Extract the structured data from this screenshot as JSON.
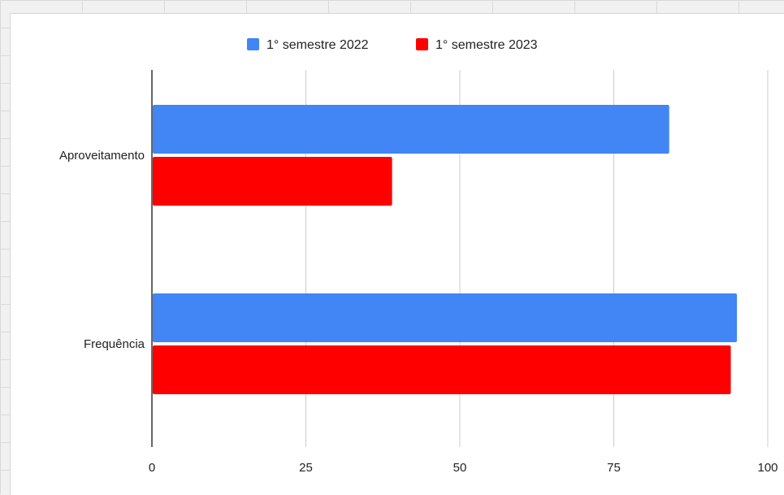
{
  "chart_data": {
    "type": "bar",
    "orientation": "horizontal",
    "categories": [
      "Aproveitamento",
      "Frequência"
    ],
    "series": [
      {
        "name": "1° semestre 2022",
        "color": "#4285f4",
        "values": [
          84,
          95
        ]
      },
      {
        "name": "1° semestre 2023",
        "color": "#ff0000",
        "values": [
          39,
          94
        ]
      }
    ],
    "xlim": [
      0,
      100
    ],
    "xticks": [
      "0",
      "25",
      "50",
      "75",
      "100"
    ],
    "grid": true,
    "legend": "top-center"
  }
}
